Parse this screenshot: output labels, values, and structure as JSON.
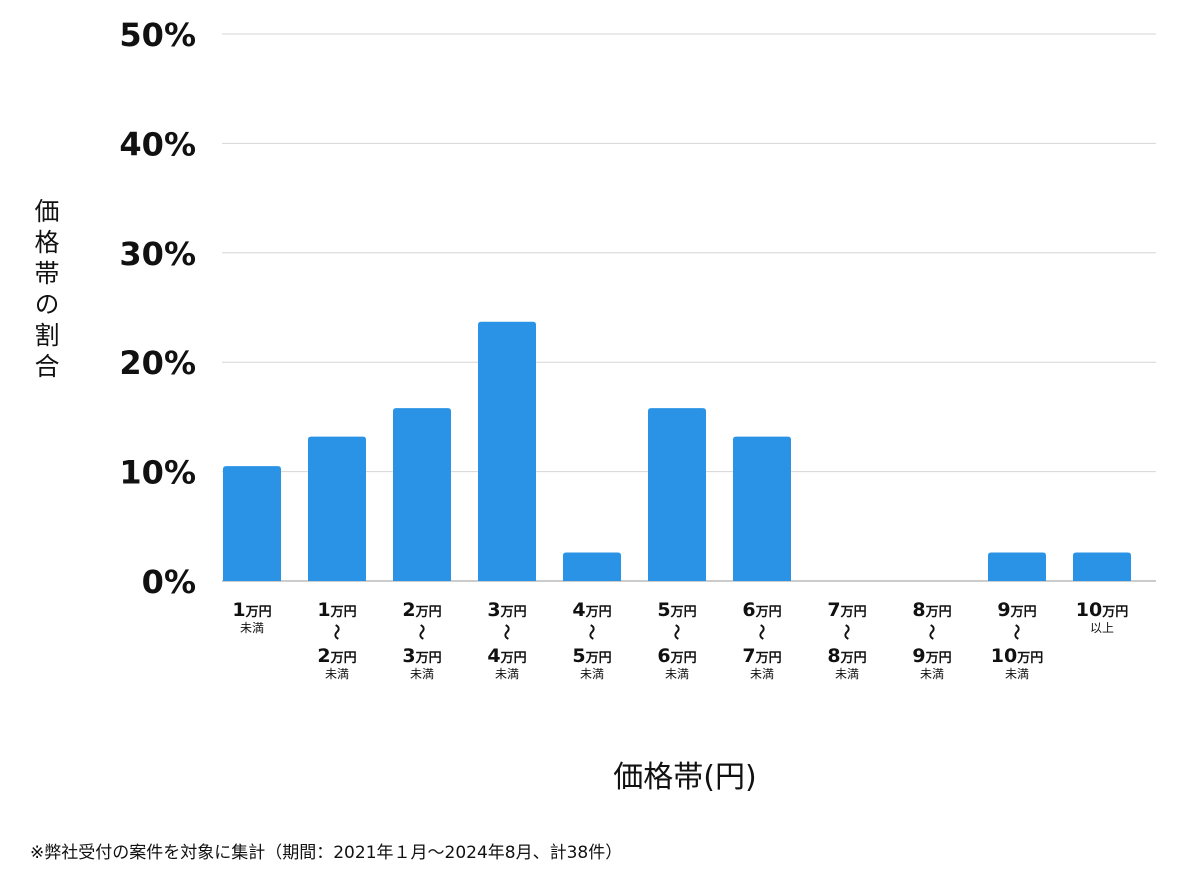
{
  "chart_data": {
    "type": "bar",
    "title": "",
    "xlabel": "価格帯(円)",
    "ylabel": "価格帯の割合",
    "ylim": [
      0,
      50
    ],
    "yticks": [
      "0%",
      "10%",
      "20%",
      "30%",
      "40%",
      "50%"
    ],
    "grid": true,
    "bar_color": "#2a93e6",
    "categories": [
      {
        "label": "1万円未満",
        "lines": [
          {
            "num": "1",
            "unit": "万円"
          },
          {
            "small": "未満"
          }
        ]
      },
      {
        "label": "1万円〜2万円未満",
        "lines": [
          {
            "num": "1",
            "unit": "万円"
          },
          {
            "tilde": "〜"
          },
          {
            "num": "2",
            "unit": "万円"
          },
          {
            "small": "未満"
          }
        ]
      },
      {
        "label": "2万円〜3万円未満",
        "lines": [
          {
            "num": "2",
            "unit": "万円"
          },
          {
            "tilde": "〜"
          },
          {
            "num": "3",
            "unit": "万円"
          },
          {
            "small": "未満"
          }
        ]
      },
      {
        "label": "3万円〜4万円未満",
        "lines": [
          {
            "num": "3",
            "unit": "万円"
          },
          {
            "tilde": "〜"
          },
          {
            "num": "4",
            "unit": "万円"
          },
          {
            "small": "未満"
          }
        ]
      },
      {
        "label": "4万円〜5万円未満",
        "lines": [
          {
            "num": "4",
            "unit": "万円"
          },
          {
            "tilde": "〜"
          },
          {
            "num": "5",
            "unit": "万円"
          },
          {
            "small": "未満"
          }
        ]
      },
      {
        "label": "5万円〜6万円未満",
        "lines": [
          {
            "num": "5",
            "unit": "万円"
          },
          {
            "tilde": "〜"
          },
          {
            "num": "6",
            "unit": "万円"
          },
          {
            "small": "未満"
          }
        ]
      },
      {
        "label": "6万円〜7万円未満",
        "lines": [
          {
            "num": "6",
            "unit": "万円"
          },
          {
            "tilde": "〜"
          },
          {
            "num": "7",
            "unit": "万円"
          },
          {
            "small": "未満"
          }
        ]
      },
      {
        "label": "7万円〜8万円未満",
        "lines": [
          {
            "num": "7",
            "unit": "万円"
          },
          {
            "tilde": "〜"
          },
          {
            "num": "8",
            "unit": "万円"
          },
          {
            "small": "未満"
          }
        ]
      },
      {
        "label": "8万円〜9万円未満",
        "lines": [
          {
            "num": "8",
            "unit": "万円"
          },
          {
            "tilde": "〜"
          },
          {
            "num": "9",
            "unit": "万円"
          },
          {
            "small": "未満"
          }
        ]
      },
      {
        "label": "9万円〜10万円未満",
        "lines": [
          {
            "num": "9",
            "unit": "万円"
          },
          {
            "tilde": "〜"
          },
          {
            "num": "10",
            "unit": "万円"
          },
          {
            "small": "未満"
          }
        ]
      },
      {
        "label": "10万円以上",
        "lines": [
          {
            "num": "10",
            "unit": "万円"
          },
          {
            "small": "以上"
          }
        ]
      }
    ],
    "values": [
      10.5,
      13.2,
      15.8,
      23.7,
      2.6,
      15.8,
      13.2,
      0,
      0,
      2.6,
      2.6
    ]
  },
  "footnote": "※弊社受付の案件を対象に集計（期間：2021年１月〜2024年8月、計38件）"
}
